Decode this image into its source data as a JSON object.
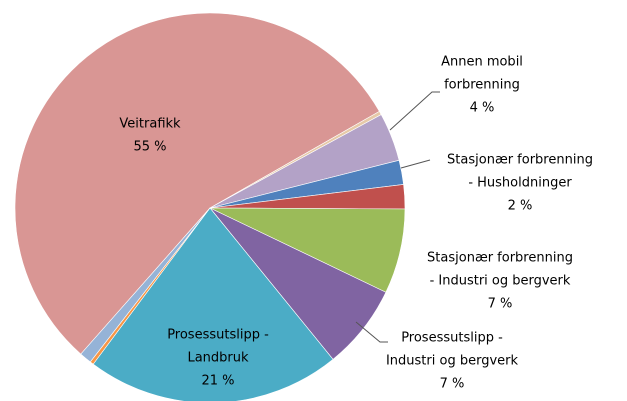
{
  "chart_data": {
    "type": "pie",
    "categories": [
      [
        "Veitrafikk"
      ],
      null,
      [
        "Annen mobil",
        "forbrenning"
      ],
      [
        "Stasjonær forbrenning",
        "- Husholdninger"
      ],
      null,
      [
        "Stasjonær forbrenning",
        "- Industri og bergverk"
      ],
      [
        "Prosessutslipp -",
        "Industri og bergverk"
      ],
      [
        "Prosessutslipp -",
        "Landbruk"
      ],
      null,
      null
    ],
    "values": [
      55,
      0.3,
      4,
      2,
      2,
      7,
      7,
      21,
      0.3,
      1
    ],
    "value_labels": [
      "55 %",
      null,
      "4 %",
      "2 %",
      null,
      "7 %",
      "7 %",
      "21 %",
      null,
      null
    ],
    "colors": [
      "#d99694",
      "#e6c9a8",
      "#b3a2c7",
      "#4f81bd",
      "#c0504d",
      "#9bbb59",
      "#8064a2",
      "#4bacc6",
      "#f79646",
      "#95b3d7"
    ]
  }
}
